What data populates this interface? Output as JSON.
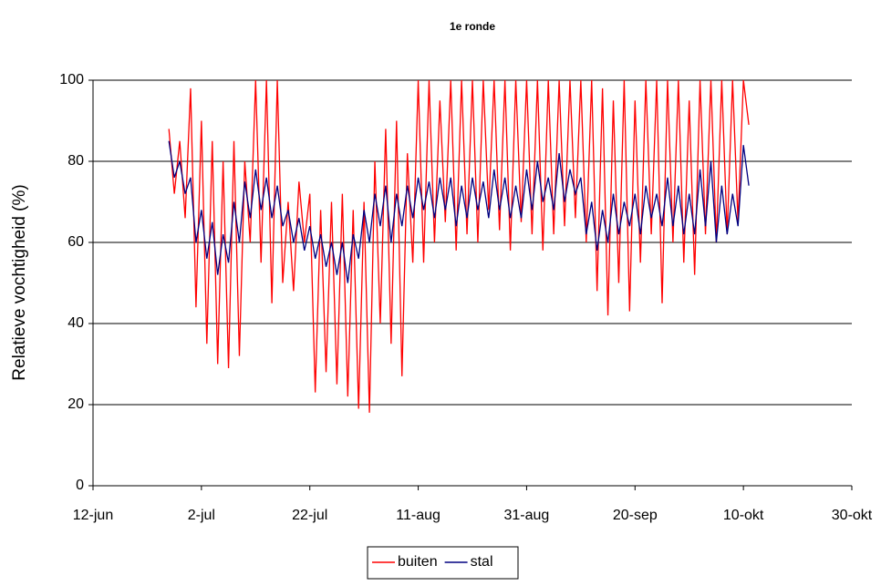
{
  "chart_data": {
    "type": "line",
    "title": "1e ronde",
    "y_label": "Relatieve vochtigheid (%)",
    "x": [
      14,
      15,
      16,
      17,
      18,
      19,
      20,
      21,
      22,
      23,
      24,
      25,
      26,
      27,
      28,
      29,
      30,
      31,
      32,
      33,
      34,
      35,
      36,
      37,
      38,
      39,
      40,
      41,
      42,
      43,
      44,
      45,
      46,
      47,
      48,
      49,
      50,
      51,
      52,
      53,
      54,
      55,
      56,
      57,
      58,
      59,
      60,
      61,
      62,
      63,
      64,
      65,
      66,
      67,
      68,
      69,
      70,
      71,
      72,
      73,
      74,
      75,
      76,
      77,
      78,
      79,
      80,
      81,
      82,
      83,
      84,
      85,
      86,
      87,
      88,
      89,
      90,
      91,
      92,
      93,
      94,
      95,
      96,
      97,
      98,
      99,
      100,
      101,
      102,
      103,
      104,
      105,
      106,
      107,
      108,
      109,
      110,
      111,
      112,
      113,
      114,
      115,
      116,
      117,
      118,
      119,
      120,
      121
    ],
    "series": [
      {
        "name": "buiten",
        "color": "#ff0000",
        "values": [
          88,
          72,
          85,
          66,
          98,
          44,
          90,
          35,
          85,
          30,
          80,
          29,
          85,
          32,
          80,
          60,
          100,
          55,
          100,
          45,
          100,
          50,
          70,
          48,
          75,
          60,
          72,
          23,
          68,
          28,
          70,
          25,
          72,
          22,
          68,
          19,
          70,
          18,
          80,
          40,
          88,
          35,
          90,
          27,
          82,
          55,
          100,
          55,
          100,
          60,
          95,
          65,
          100,
          58,
          100,
          62,
          100,
          60,
          100,
          68,
          100,
          63,
          100,
          58,
          100,
          65,
          100,
          62,
          100,
          58,
          100,
          62,
          100,
          64,
          100,
          66,
          100,
          60,
          100,
          48,
          98,
          42,
          95,
          50,
          100,
          43,
          95,
          55,
          100,
          62,
          100,
          45,
          100,
          60,
          100,
          55,
          95,
          52,
          100,
          62,
          100,
          60,
          100,
          62,
          100,
          65,
          100,
          89
        ]
      },
      {
        "name": "stal",
        "color": "#000080",
        "values": [
          85,
          76,
          80,
          72,
          76,
          60,
          68,
          56,
          65,
          52,
          62,
          55,
          70,
          60,
          75,
          66,
          78,
          68,
          76,
          66,
          74,
          64,
          68,
          60,
          66,
          58,
          64,
          56,
          62,
          54,
          60,
          52,
          60,
          50,
          62,
          56,
          68,
          60,
          72,
          64,
          74,
          60,
          72,
          64,
          74,
          66,
          76,
          68,
          75,
          66,
          76,
          68,
          76,
          64,
          74,
          66,
          76,
          68,
          75,
          66,
          78,
          68,
          76,
          66,
          74,
          66,
          78,
          68,
          80,
          70,
          76,
          68,
          82,
          70,
          78,
          72,
          76,
          62,
          70,
          58,
          68,
          60,
          72,
          62,
          70,
          64,
          72,
          62,
          74,
          66,
          72,
          64,
          76,
          64,
          74,
          62,
          72,
          62,
          78,
          64,
          80,
          60,
          74,
          62,
          72,
          64,
          84,
          74
        ]
      }
    ],
    "xlim": [
      0,
      140
    ],
    "xticks": [
      {
        "value": 0,
        "label": "12-jun"
      },
      {
        "value": 20,
        "label": "2-jul"
      },
      {
        "value": 40,
        "label": "22-jul"
      },
      {
        "value": 60,
        "label": "11-aug"
      },
      {
        "value": 80,
        "label": "31-aug"
      },
      {
        "value": 100,
        "label": "20-sep"
      },
      {
        "value": 120,
        "label": "10-okt"
      },
      {
        "value": 140,
        "label": "30-okt"
      }
    ],
    "ylim": [
      0,
      100
    ],
    "yticks": [
      0,
      20,
      40,
      60,
      80,
      100
    ],
    "grid": true,
    "legend": "bottom"
  }
}
